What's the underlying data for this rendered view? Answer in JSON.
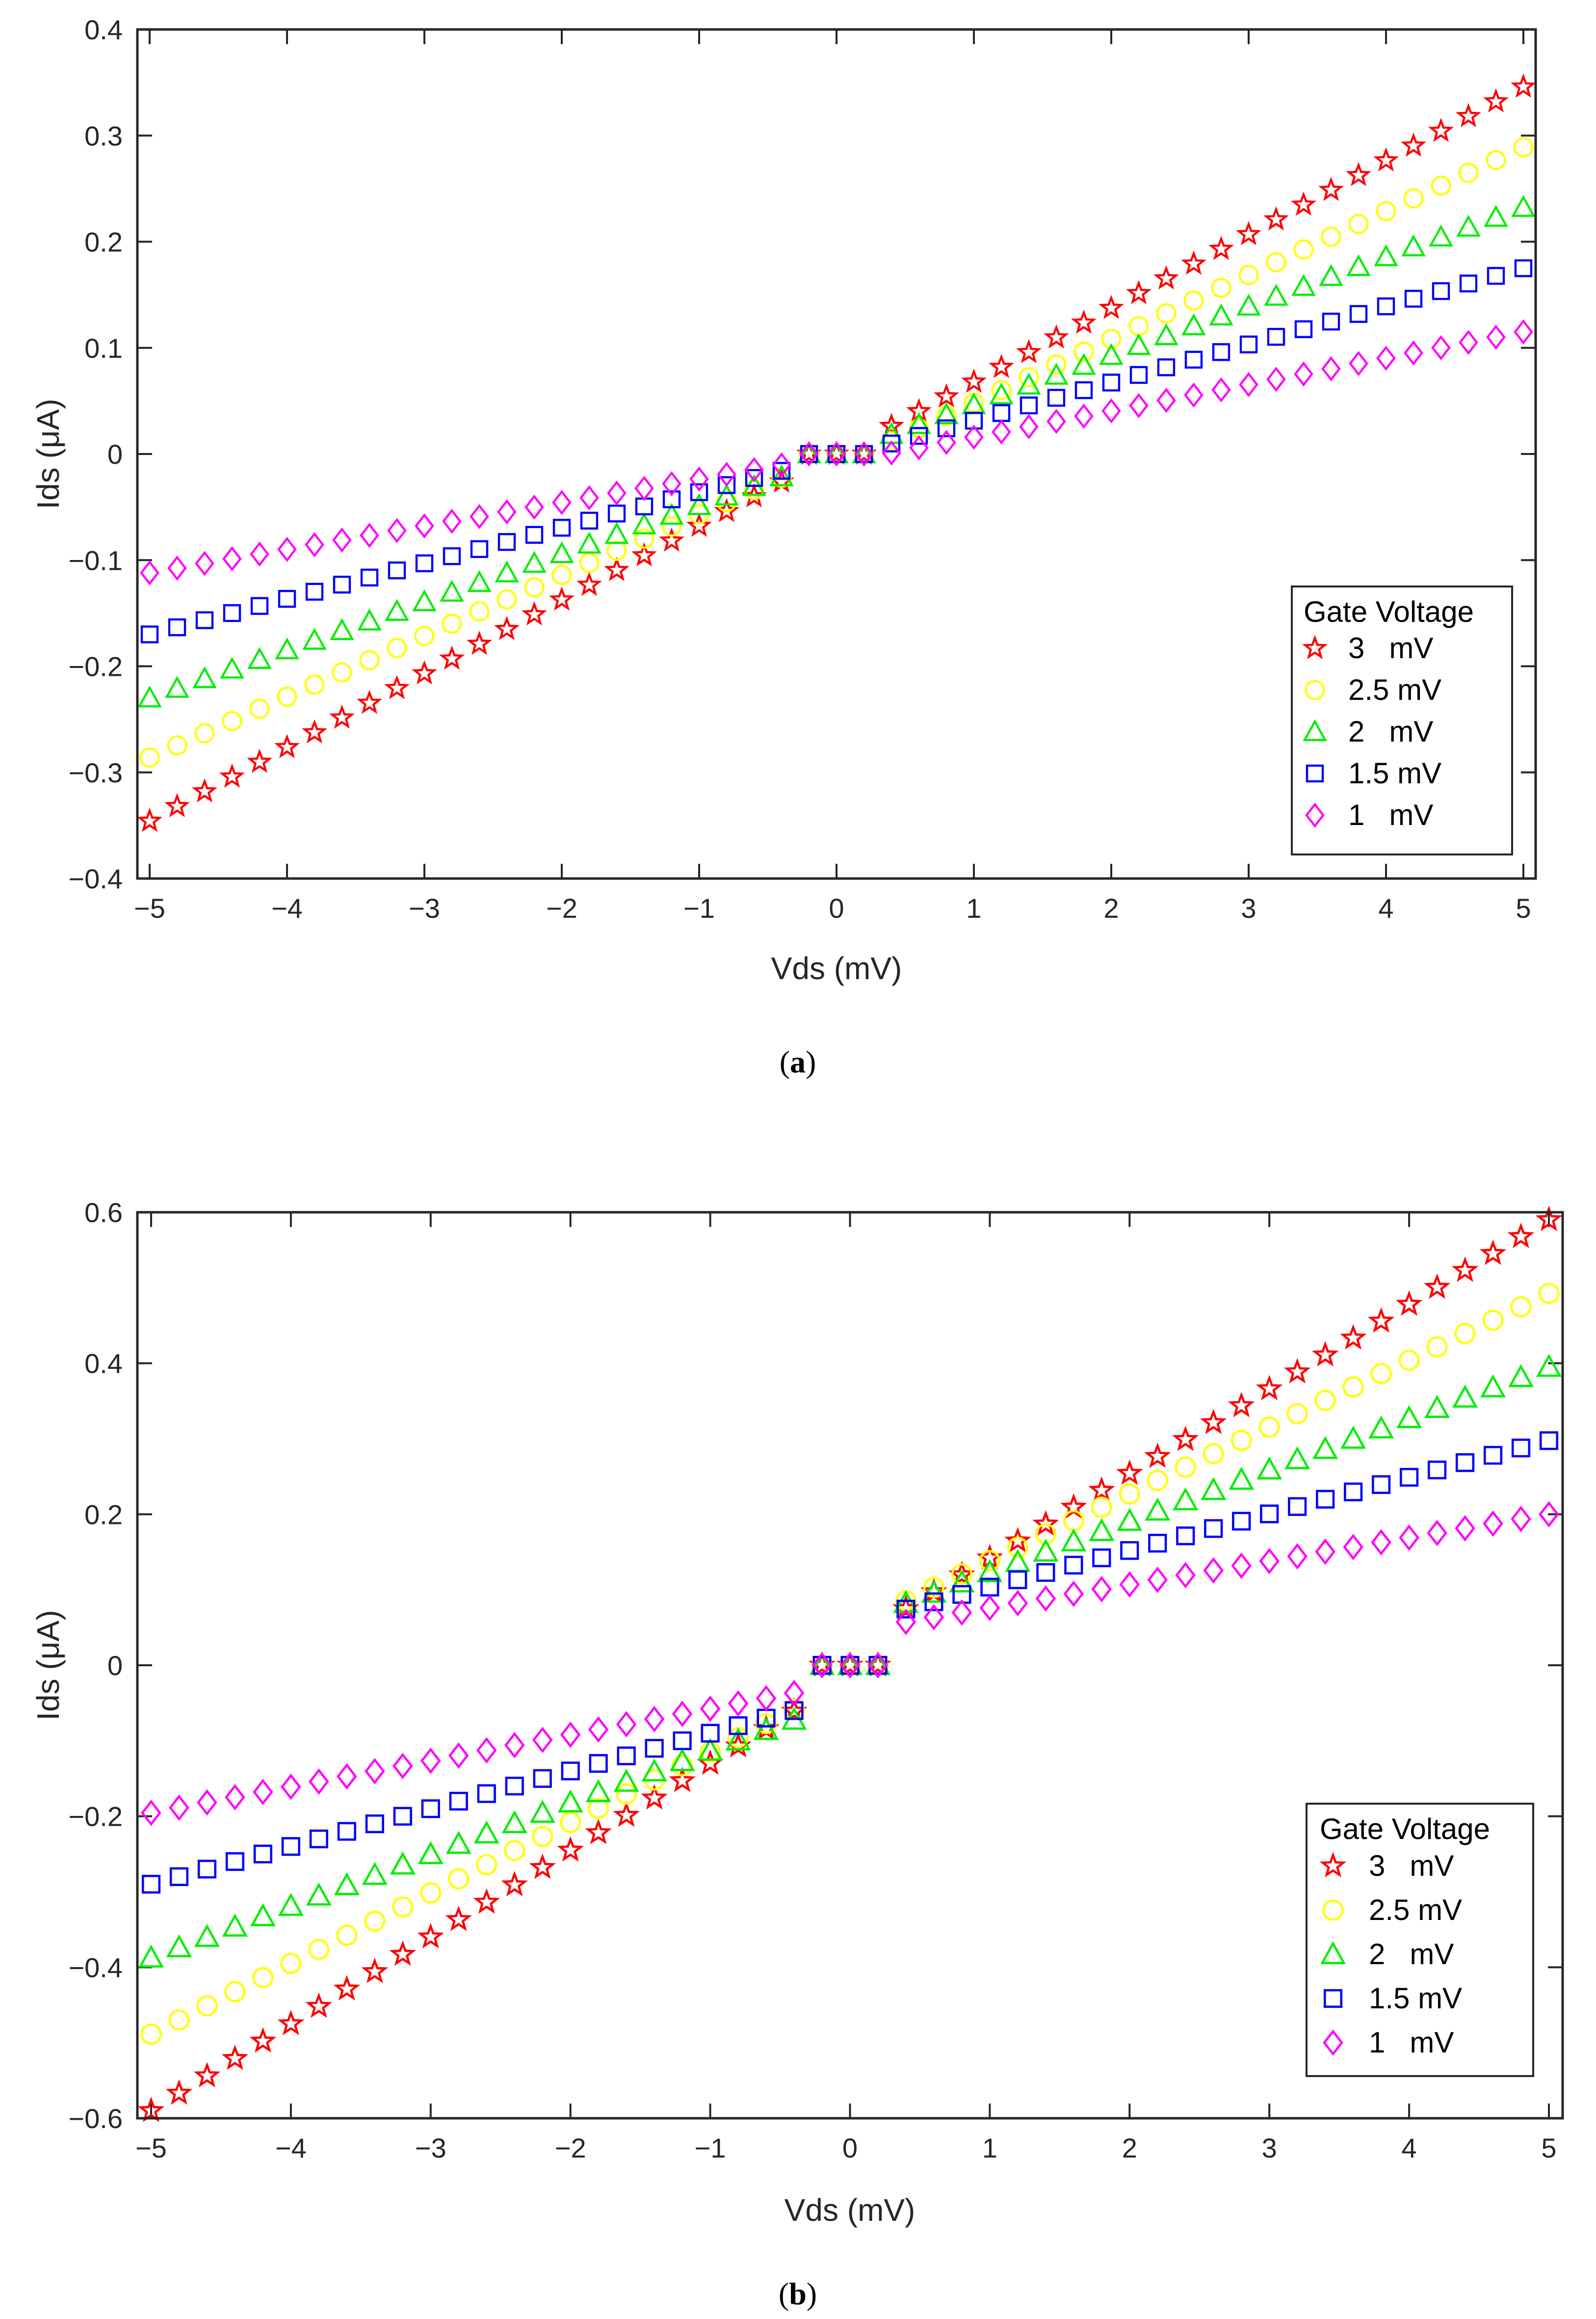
{
  "chart_data": [
    {
      "type": "scatter",
      "caption_paren_open": "(",
      "caption_letter": "a",
      "caption_paren_close": ")",
      "xlabel": "Vds (mV)",
      "ylabel": "Ids (μA)",
      "xlim": [
        -5,
        5
      ],
      "ylim": [
        -0.4,
        0.4
      ],
      "xticks": [
        -5,
        -4,
        -3,
        -2,
        -1,
        0,
        1,
        2,
        3,
        4,
        5
      ],
      "xtick_labels": [
        "−5",
        "−4",
        "−3",
        "−2",
        "−1",
        "0",
        "1",
        "2",
        "3",
        "4",
        "5"
      ],
      "yticks": [
        -0.4,
        -0.3,
        -0.2,
        -0.1,
        0,
        0.1,
        0.2,
        0.3,
        0.4
      ],
      "ytick_labels": [
        "−0.4",
        "−0.3",
        "−0.2",
        "−0.1",
        "0",
        "0.1",
        "0.2",
        "0.3",
        "0.4"
      ],
      "legend": {
        "title": "Gate Voltage",
        "placement": "bottom-right"
      },
      "x": {
        "start": -5,
        "stop": 5,
        "step": 0.2
      },
      "zero_range": [
        -0.2,
        0.2
      ],
      "series": [
        {
          "name": "3   mV",
          "marker": "star",
          "color": "#ff0000",
          "slope_pos": 0.0695,
          "intercept_pos": -0.0016,
          "slope_neg": 0.0695,
          "intercept_neg": 0.0016
        },
        {
          "name": "2.5 mV",
          "marker": "circle",
          "color": "#ffff00",
          "slope_pos": 0.0602,
          "intercept_pos": -0.012,
          "slope_neg": 0.0573,
          "intercept_neg": 0.0005
        },
        {
          "name": "2   mV",
          "marker": "triangle",
          "color": "#00ee00",
          "slope_pos": 0.0465,
          "intercept_pos": -0.0003,
          "slope_neg": 0.0453,
          "intercept_neg": -0.0035
        },
        {
          "name": "1.5 mV",
          "marker": "square",
          "color": "#0000ff",
          "slope_pos": 0.0359,
          "intercept_pos": -0.0045,
          "slope_neg": 0.0335,
          "intercept_neg": -0.0025
        },
        {
          "name": "1   mV",
          "marker": "diamond",
          "color": "#ff00ff",
          "slope_pos": 0.0248,
          "intercept_pos": -0.009,
          "slope_neg": 0.0221,
          "intercept_neg": -0.0015
        }
      ]
    },
    {
      "type": "scatter",
      "caption_paren_open": "(",
      "caption_letter": "b",
      "caption_paren_close": ")",
      "xlabel": "Vds (mV)",
      "ylabel": "Ids (μA)",
      "xlim": [
        -5,
        5
      ],
      "ylim": [
        -0.6,
        0.6
      ],
      "xticks": [
        -5,
        -4,
        -3,
        -2,
        -1,
        0,
        1,
        2,
        3,
        4,
        5
      ],
      "xtick_labels": [
        "−5",
        "−4",
        "−3",
        "−2",
        "−1",
        "0",
        "1",
        "2",
        "3",
        "4",
        "5"
      ],
      "yticks": [
        -0.6,
        -0.4,
        -0.2,
        0,
        0.2,
        0.4,
        0.6
      ],
      "ytick_labels": [
        "−0.6",
        "−0.4",
        "−0.2",
        "0",
        "0.2",
        "0.4",
        "0.6"
      ],
      "legend": {
        "title": "Gate Voltage",
        "placement": "bottom-right"
      },
      "x": {
        "start": -5,
        "stop": 5,
        "step": 0.2
      },
      "zero_range": [
        -0.2,
        0.2
      ],
      "series": [
        {
          "name": "3   mV",
          "marker": "star",
          "color": "#ff0000",
          "slope_pos": 0.112,
          "intercept_pos": 0.03,
          "slope_neg": 0.115,
          "intercept_neg": -0.015
        },
        {
          "name": "2.5 mV",
          "marker": "circle",
          "color": "#ffff00",
          "slope_pos": 0.0885,
          "intercept_pos": 0.05,
          "slope_neg": 0.0935,
          "intercept_neg": -0.021
        },
        {
          "name": "2   mV",
          "marker": "triangle",
          "color": "#00ee00",
          "slope_pos": 0.068,
          "intercept_pos": 0.055,
          "slope_neg": 0.0685,
          "intercept_neg": -0.045
        },
        {
          "name": "1.5 mV",
          "marker": "square",
          "color": "#0000ff",
          "slope_pos": 0.0485,
          "intercept_pos": 0.055,
          "slope_neg": 0.05,
          "intercept_neg": -0.04
        },
        {
          "name": "1   mV",
          "marker": "diamond",
          "color": "#ff00ff",
          "slope_pos": 0.031,
          "intercept_pos": 0.045,
          "slope_neg": 0.0345,
          "intercept_neg": -0.023
        }
      ]
    }
  ]
}
